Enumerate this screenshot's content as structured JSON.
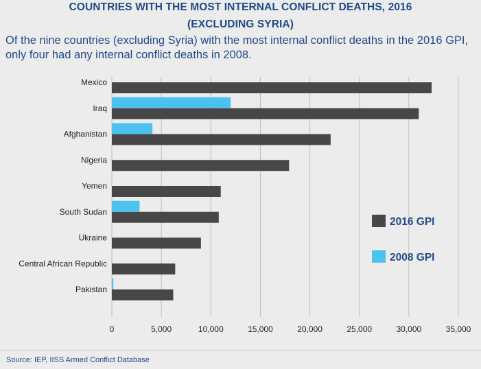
{
  "title_line1": "COUNTRIES WITH THE MOST INTERNAL CONFLICT DEATHS, 2016",
  "title_line2": "(EXCLUDING SYRIA)",
  "subtitle": "Of the nine countries (excluding Syria) with the most internal conflict deaths in the 2016 GPI, only four had any internal conflict deaths in 2008.",
  "source": "Source: IEP, IISS Armed Conflict Database",
  "colors": {
    "series_2016": "#474747",
    "series_2008": "#4cc3ee",
    "grid": "#bdbdbd"
  },
  "chart_data": {
    "type": "bar",
    "orientation": "horizontal",
    "categories": [
      "Mexico",
      "Iraq",
      "Afghanistan",
      "Nigeria",
      "Yemen",
      "South Sudan",
      "Ukraine",
      "Central African Republic",
      "Pakistan"
    ],
    "series": [
      {
        "name": "2016 GPI",
        "values": [
          32300,
          31000,
          22100,
          17900,
          11000,
          10800,
          9000,
          6400,
          6200
        ]
      },
      {
        "name": "2008 GPI",
        "values": [
          0,
          12000,
          4100,
          0,
          0,
          2800,
          0,
          0,
          150
        ]
      }
    ],
    "xlim": [
      0,
      35000
    ],
    "xticks": [
      0,
      5000,
      10000,
      15000,
      20000,
      25000,
      30000,
      35000
    ],
    "xtick_labels": [
      "0",
      "5,000",
      "10,000",
      "15,000",
      "20,000",
      "25,000",
      "30,000",
      "35,000"
    ],
    "grid": true,
    "legend_position": "right"
  }
}
